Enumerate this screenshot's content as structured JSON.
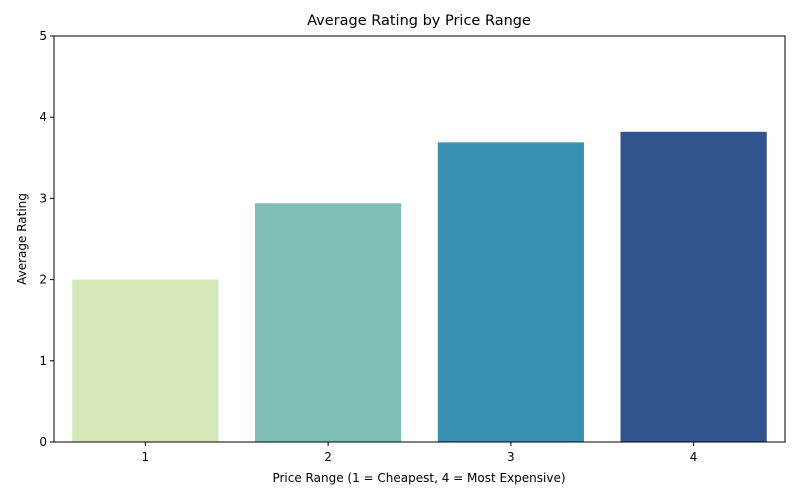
{
  "chart_data": {
    "type": "bar",
    "title": "Average Rating by Price Range",
    "xlabel": "Price Range (1 = Cheapest, 4 = Most Expensive)",
    "ylabel": "Average Rating",
    "categories": [
      "1",
      "2",
      "3",
      "4"
    ],
    "values": [
      2.0,
      2.94,
      3.69,
      3.82
    ],
    "colors": [
      "#d6e8b8",
      "#7fbfb3",
      "#3891b0",
      "#32548f"
    ],
    "ylim": [
      0,
      5
    ],
    "yticks": [
      0,
      1,
      2,
      3,
      4,
      5
    ],
    "grid": false,
    "legend": "none"
  }
}
